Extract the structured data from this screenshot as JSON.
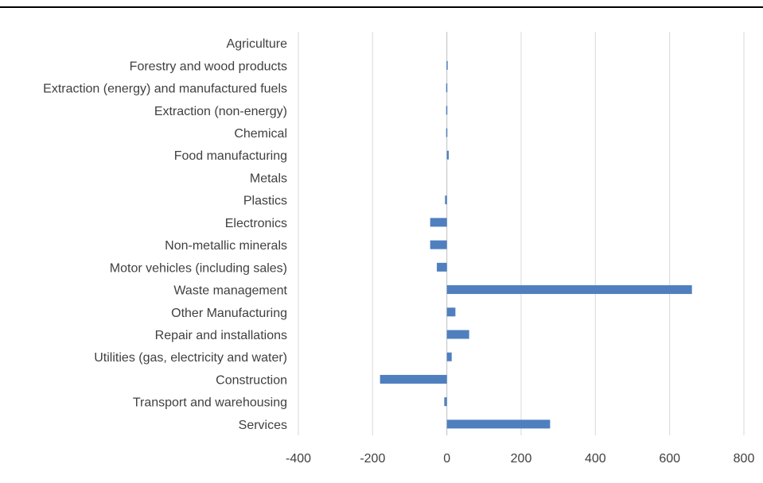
{
  "chart_data": {
    "type": "bar",
    "orientation": "horizontal",
    "categories": [
      "Agriculture",
      "Forestry and wood products",
      "Extraction (energy) and manufactured fuels",
      "Extraction (non-energy)",
      "Chemical",
      "Food manufacturing",
      "Metals",
      "Plastics",
      "Electronics",
      "Non-metallic minerals",
      "Motor vehicles (including sales)",
      "Waste management",
      "Other Manufacturing",
      "Repair and installations",
      "Utilities (gas, electricity and water)",
      "Construction",
      "Transport and warehousing",
      "Services"
    ],
    "values": [
      0,
      -1,
      -2,
      -2,
      -2,
      5,
      0,
      -5,
      -45,
      -45,
      -27,
      660,
      23,
      60,
      13,
      -180,
      -7,
      278
    ],
    "xlim": [
      -400,
      800
    ],
    "xticks": [
      "-400",
      "-200",
      "0",
      "200",
      "400",
      "600",
      "800"
    ],
    "title": "",
    "xlabel": "",
    "ylabel": "",
    "grid": "vertical",
    "legend": "none",
    "bar_color": "#4f7fbf"
  }
}
